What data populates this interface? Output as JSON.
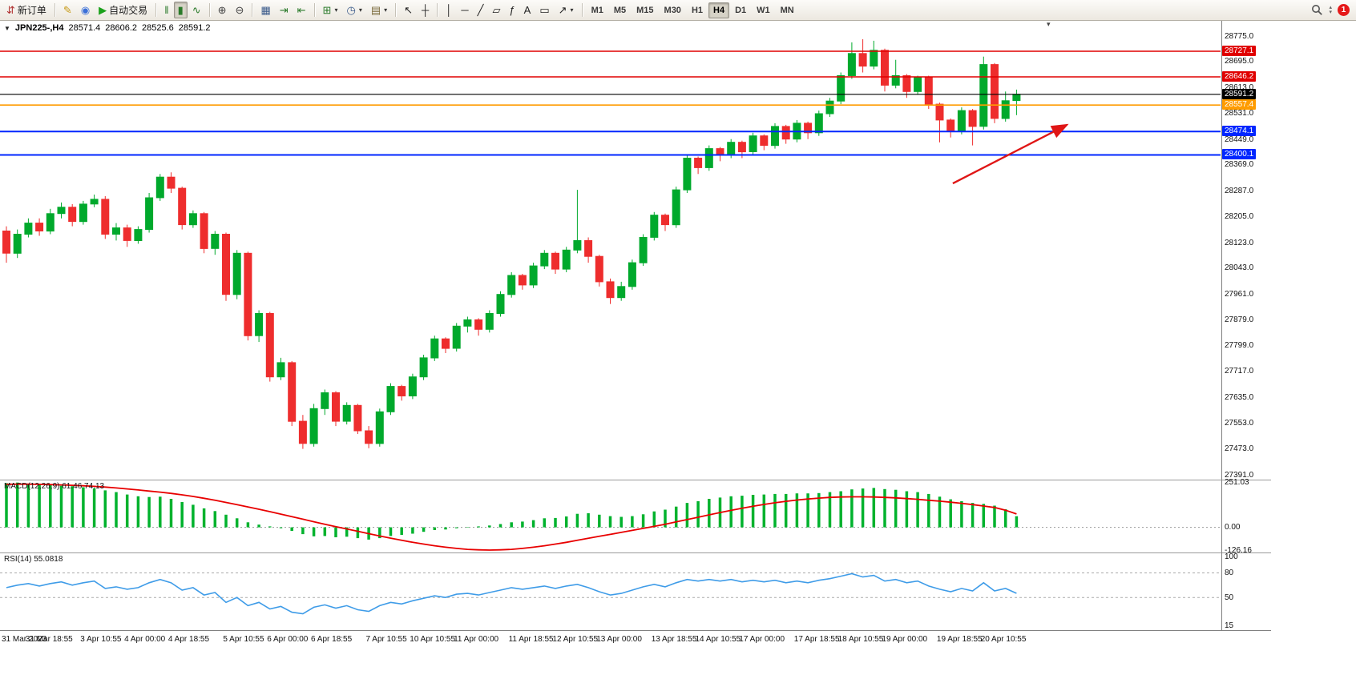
{
  "colors": {
    "candle_up": "#00a92c",
    "candle_down": "#ee2d2d",
    "macd_hist": "#00b22d",
    "macd_signal": "#e80000",
    "rsi_line": "#3f9ce8",
    "level_red": "#e00000",
    "level_orange": "#ff9c00",
    "level_blue": "#0026ff",
    "current_price": "#000000",
    "arrow": "#e01616"
  },
  "toolbar": {
    "notification_count": "1",
    "timeframes": {
      "items": [
        "M1",
        "M5",
        "M15",
        "M30",
        "H1",
        "H4",
        "D1",
        "W1",
        "MN"
      ],
      "active": "H4"
    },
    "groups": [
      {
        "name": "trade",
        "items": [
          {
            "name": "new-order-button",
            "icon": "new-order-icon",
            "glyph": "⇵",
            "color": "#b03030",
            "label": "新订单"
          }
        ]
      },
      {
        "name": "apps",
        "items": [
          {
            "name": "metaeditor-button",
            "icon": "metaeditor-icon",
            "glyph": "✎",
            "color": "#c79a16"
          },
          {
            "name": "market-watch-button",
            "icon": "market-watch-icon",
            "glyph": "◉",
            "color": "#3a6fd8"
          },
          {
            "name": "autotrading-button",
            "icon": "autotrading-play-icon",
            "glyph": "▶",
            "color": "#1ba11b",
            "label": "自动交易"
          }
        ]
      },
      {
        "name": "chart-type",
        "items": [
          {
            "name": "bar-chart-button",
            "icon": "bar-chart-icon",
            "glyph": "‖",
            "color": "#2a7a2a"
          },
          {
            "name": "candle-chart-button",
            "icon": "candlestick-chart-icon",
            "glyph": "▮",
            "color": "#2a7a2a",
            "active": true
          },
          {
            "name": "line-chart-button",
            "icon": "line-chart-icon",
            "glyph": "∿",
            "color": "#2a7a2a"
          }
        ]
      },
      {
        "name": "zoom",
        "items": [
          {
            "name": "zoom-in-button",
            "icon": "zoom-in-icon",
            "glyph": "⊕",
            "color": "#444"
          },
          {
            "name": "zoom-out-button",
            "icon": "zoom-out-icon",
            "glyph": "⊖",
            "color": "#444"
          }
        ]
      },
      {
        "name": "windows",
        "items": [
          {
            "name": "tile-windows-button",
            "icon": "tile-windows-icon",
            "glyph": "▦",
            "color": "#3a5a8a"
          },
          {
            "name": "auto-scroll-button",
            "icon": "auto-scroll-icon",
            "glyph": "⇥",
            "color": "#2a7a2a"
          },
          {
            "name": "chart-shift-button",
            "icon": "chart-shift-icon",
            "glyph": "⇤",
            "color": "#2a7a2a"
          }
        ]
      },
      {
        "name": "dropdowns",
        "items": [
          {
            "name": "indicators-button",
            "icon": "indicators-plus-icon",
            "glyph": "⊞",
            "color": "#2a7a2a",
            "caret": true
          },
          {
            "name": "periods-button",
            "icon": "clock-icon",
            "glyph": "◷",
            "color": "#3a5a8a",
            "caret": true
          },
          {
            "name": "templates-button",
            "icon": "template-icon",
            "glyph": "▤",
            "color": "#7a6a3a",
            "caret": true
          }
        ]
      },
      {
        "name": "cursor-tools",
        "items": [
          {
            "name": "cursor-button",
            "icon": "cursor-arrow-icon",
            "glyph": "↖",
            "color": "#222"
          },
          {
            "name": "crosshair-button",
            "icon": "crosshair-icon",
            "glyph": "┼",
            "color": "#222"
          }
        ]
      },
      {
        "name": "draw-tools",
        "items": [
          {
            "name": "vertical-line-button",
            "icon": "vertical-line-icon",
            "glyph": "│",
            "color": "#222"
          },
          {
            "name": "horizontal-line-button",
            "icon": "horizontal-line-icon",
            "glyph": "─",
            "color": "#222"
          },
          {
            "name": "trendline-button",
            "icon": "trendline-icon",
            "glyph": "╱",
            "color": "#222"
          },
          {
            "name": "channel-button",
            "icon": "channel-icon",
            "glyph": "▱",
            "color": "#222"
          },
          {
            "name": "fibonacci-button",
            "icon": "fibonacci-icon",
            "glyph": "ƒ",
            "color": "#222"
          },
          {
            "name": "text-button",
            "icon": "text-icon",
            "glyph": "A",
            "color": "#222"
          },
          {
            "name": "label-button",
            "icon": "label-icon",
            "glyph": "▭",
            "color": "#222"
          },
          {
            "name": "arrows-button",
            "icon": "arrow-objects-icon",
            "glyph": "↗",
            "color": "#222",
            "caret": true
          }
        ]
      }
    ]
  },
  "chart_header": {
    "collapse_glyph": "▼",
    "symbol_period": "JPN225-,H4",
    "open": "28571.4",
    "high": "28606.2",
    "low": "28525.6",
    "close": "28591.2"
  },
  "indicators": {
    "macd_label": "MACD(12,26,9) 61.46 74.13",
    "rsi_label": "RSI(14) 55.0818"
  },
  "chart_data": {
    "type": "candlestick",
    "symbol": "JPN225-",
    "timeframe": "H4",
    "price_range": {
      "min": 27376,
      "max": 28823
    },
    "y_ticks": [
      28775.0,
      28695.0,
      28613.0,
      28531.0,
      28449.0,
      28369.0,
      28287.0,
      28205.0,
      28123.0,
      28043.0,
      27961.0,
      27879.0,
      27799.0,
      27717.0,
      27635.0,
      27553.0,
      27473.0,
      27391.0
    ],
    "hlines": [
      {
        "value": 28727.1,
        "label": "28727.1",
        "color": "#e00000",
        "width": 1.4
      },
      {
        "value": 28646.2,
        "label": "28646.2",
        "color": "#e00000",
        "width": 1.4
      },
      {
        "value": 28591.2,
        "label": "28591.2",
        "color": "#000000",
        "width": 1.2
      },
      {
        "value": 28557.4,
        "label": "28557.4",
        "color": "#ff9c00",
        "width": 1.6
      },
      {
        "value": 28474.1,
        "label": "28474.1",
        "color": "#0026ff",
        "width": 2
      },
      {
        "value": 28400.1,
        "label": "28400.1",
        "color": "#0026ff",
        "width": 2
      }
    ],
    "arrow": {
      "from_i": 86.2,
      "from_price": 28310,
      "to_i": 96.6,
      "to_price": 28495,
      "color": "#e01616"
    },
    "candles": [
      [
        28160,
        28175,
        28060,
        28090
      ],
      [
        28090,
        28165,
        28075,
        28150
      ],
      [
        28150,
        28200,
        28140,
        28185
      ],
      [
        28185,
        28200,
        28145,
        28160
      ],
      [
        28160,
        28230,
        28150,
        28215
      ],
      [
        28215,
        28250,
        28200,
        28235
      ],
      [
        28235,
        28245,
        28175,
        28190
      ],
      [
        28190,
        28255,
        28180,
        28245
      ],
      [
        28245,
        28275,
        28235,
        28260
      ],
      [
        28260,
        28270,
        28135,
        28150
      ],
      [
        28150,
        28185,
        28130,
        28170
      ],
      [
        28170,
        28180,
        28110,
        28130
      ],
      [
        28130,
        28175,
        28120,
        28165
      ],
      [
        28165,
        28280,
        28155,
        28265
      ],
      [
        28265,
        28340,
        28255,
        28330
      ],
      [
        28330,
        28345,
        28280,
        28295
      ],
      [
        28295,
        28300,
        28165,
        28180
      ],
      [
        28180,
        28225,
        28170,
        28215
      ],
      [
        28215,
        28220,
        28090,
        28105
      ],
      [
        28105,
        28160,
        28085,
        28150
      ],
      [
        28150,
        28155,
        27940,
        27960
      ],
      [
        27960,
        28100,
        27945,
        28090
      ],
      [
        28090,
        28095,
        27815,
        27830
      ],
      [
        27830,
        27910,
        27810,
        27900
      ],
      [
        27900,
        27905,
        27685,
        27700
      ],
      [
        27700,
        27760,
        27690,
        27745
      ],
      [
        27745,
        27750,
        27545,
        27560
      ],
      [
        27560,
        27580,
        27473,
        27490
      ],
      [
        27490,
        27615,
        27480,
        27600
      ],
      [
        27600,
        27660,
        27580,
        27650
      ],
      [
        27650,
        27655,
        27545,
        27560
      ],
      [
        27560,
        27620,
        27550,
        27610
      ],
      [
        27610,
        27615,
        27520,
        27530
      ],
      [
        27530,
        27545,
        27475,
        27490
      ],
      [
        27490,
        27600,
        27480,
        27590
      ],
      [
        27590,
        27680,
        27580,
        27670
      ],
      [
        27670,
        27675,
        27625,
        27640
      ],
      [
        27640,
        27710,
        27630,
        27700
      ],
      [
        27700,
        27770,
        27690,
        27760
      ],
      [
        27760,
        27830,
        27750,
        27820
      ],
      [
        27820,
        27825,
        27775,
        27790
      ],
      [
        27790,
        27870,
        27780,
        27860
      ],
      [
        27860,
        27890,
        27840,
        27880
      ],
      [
        27880,
        27885,
        27830,
        27850
      ],
      [
        27850,
        27910,
        27840,
        27900
      ],
      [
        27900,
        27970,
        27890,
        27960
      ],
      [
        27960,
        28030,
        27950,
        28020
      ],
      [
        28020,
        28025,
        27975,
        27990
      ],
      [
        27990,
        28060,
        27980,
        28050
      ],
      [
        28050,
        28100,
        28040,
        28090
      ],
      [
        28090,
        28095,
        28025,
        28040
      ],
      [
        28040,
        28110,
        28030,
        28100
      ],
      [
        28100,
        28290,
        28090,
        28130
      ],
      [
        28130,
        28140,
        28060,
        28080
      ],
      [
        28080,
        28085,
        27985,
        28000
      ],
      [
        28000,
        28010,
        27930,
        27950
      ],
      [
        27950,
        28000,
        27940,
        27985
      ],
      [
        27985,
        28070,
        27975,
        28060
      ],
      [
        28060,
        28150,
        28050,
        28140
      ],
      [
        28140,
        28220,
        28130,
        28210
      ],
      [
        28210,
        28215,
        28160,
        28180
      ],
      [
        28180,
        28300,
        28170,
        28290
      ],
      [
        28290,
        28400,
        28280,
        28390
      ],
      [
        28390,
        28395,
        28340,
        28360
      ],
      [
        28360,
        28430,
        28350,
        28420
      ],
      [
        28420,
        28425,
        28380,
        28400
      ],
      [
        28400,
        28450,
        28390,
        28440
      ],
      [
        28440,
        28445,
        28390,
        28410
      ],
      [
        28410,
        28470,
        28400,
        28460
      ],
      [
        28460,
        28465,
        28415,
        28430
      ],
      [
        28430,
        28500,
        28420,
        28490
      ],
      [
        28490,
        28495,
        28435,
        28450
      ],
      [
        28450,
        28510,
        28440,
        28500
      ],
      [
        28500,
        28505,
        28450,
        28470
      ],
      [
        28470,
        28540,
        28460,
        28530
      ],
      [
        28530,
        28580,
        28520,
        28570
      ],
      [
        28570,
        28660,
        28560,
        28650
      ],
      [
        28650,
        28755,
        28640,
        28720
      ],
      [
        28720,
        28765,
        28660,
        28680
      ],
      [
        28680,
        28760,
        28670,
        28730
      ],
      [
        28730,
        28735,
        28600,
        28620
      ],
      [
        28620,
        28700,
        28610,
        28650
      ],
      [
        28650,
        28655,
        28580,
        28600
      ],
      [
        28600,
        28650,
        28590,
        28645
      ],
      [
        28645,
        28650,
        28545,
        28560
      ],
      [
        28560,
        28565,
        28440,
        28510
      ],
      [
        28510,
        28515,
        28455,
        28475
      ],
      [
        28475,
        28550,
        28465,
        28540
      ],
      [
        28540,
        28545,
        28430,
        28490
      ],
      [
        28490,
        28710,
        28480,
        28685
      ],
      [
        28685,
        28690,
        28500,
        28515
      ],
      [
        28515,
        28600,
        28505,
        28571
      ],
      [
        28571.4,
        28606.2,
        28525.6,
        28591.2
      ]
    ],
    "macd": {
      "params": "12,26,9",
      "value": 61.46,
      "signal_value": 74.13,
      "range": {
        "min": -126.16,
        "max": 251.03
      },
      "axis": [
        {
          "text": "251.03",
          "value": 251.03
        },
        {
          "text": "0.00",
          "value": 0
        },
        {
          "text": "-126.16",
          "value": -126.16
        }
      ],
      "histogram": [
        245,
        248,
        242,
        238,
        235,
        230,
        228,
        222,
        215,
        205,
        195,
        182,
        172,
        168,
        170,
        158,
        140,
        125,
        105,
        90,
        70,
        50,
        28,
        15,
        5,
        -5,
        -20,
        -38,
        -50,
        -48,
        -55,
        -52,
        -60,
        -68,
        -60,
        -48,
        -42,
        -35,
        -25,
        -15,
        -12,
        -5,
        2,
        5,
        10,
        18,
        28,
        32,
        40,
        50,
        52,
        60,
        75,
        78,
        70,
        62,
        58,
        62,
        72,
        88,
        98,
        115,
        135,
        145,
        158,
        165,
        172,
        175,
        180,
        182,
        185,
        185,
        188,
        188,
        190,
        195,
        200,
        210,
        215,
        218,
        212,
        208,
        200,
        195,
        185,
        170,
        155,
        145,
        135,
        130,
        120,
        100,
        61.46
      ],
      "signal": [
        238,
        239,
        239,
        238,
        237,
        235,
        233,
        230,
        227,
        223,
        218,
        213,
        207,
        201,
        195,
        188,
        180,
        171,
        161,
        150,
        138,
        126,
        113,
        100,
        87,
        73,
        59,
        45,
        31,
        17,
        4,
        -9,
        -22,
        -35,
        -48,
        -60,
        -72,
        -83,
        -93,
        -102,
        -110,
        -117,
        -122,
        -125,
        -126.16,
        -125,
        -122,
        -117,
        -110,
        -102,
        -93,
        -83,
        -72,
        -61,
        -50,
        -39,
        -28,
        -17,
        -6,
        5,
        17,
        30,
        43,
        56,
        69,
        82,
        94,
        106,
        117,
        127,
        136,
        144,
        151,
        157,
        162,
        166,
        168,
        169,
        169,
        168,
        166,
        163,
        159,
        155,
        150,
        145,
        139,
        133,
        126,
        118,
        110,
        95,
        74.13
      ]
    },
    "rsi": {
      "params": "14",
      "value": 55.0818,
      "range": {
        "min": 13,
        "max": 102
      },
      "levels": [
        80,
        50
      ],
      "axis": [
        {
          "text": "100",
          "value": 100
        },
        {
          "text": "80",
          "value": 80
        },
        {
          "text": "50",
          "value": 50
        },
        {
          "text": "15",
          "value": 15
        }
      ],
      "values": [
        62,
        65,
        67,
        64,
        67,
        69,
        65,
        68,
        70,
        61,
        63,
        60,
        62,
        68,
        72,
        68,
        59,
        62,
        53,
        56,
        44,
        50,
        40,
        44,
        36,
        39,
        32,
        30,
        38,
        41,
        37,
        40,
        35,
        33,
        40,
        44,
        42,
        46,
        49,
        52,
        50,
        54,
        55,
        53,
        56,
        59,
        62,
        60,
        62,
        64,
        61,
        64,
        66,
        62,
        57,
        53,
        55,
        59,
        63,
        66,
        63,
        68,
        72,
        70,
        72,
        70,
        72,
        69,
        71,
        69,
        71,
        68,
        70,
        68,
        71,
        73,
        76,
        79,
        75,
        77,
        70,
        72,
        68,
        70,
        64,
        60,
        57,
        61,
        58,
        68,
        58,
        61,
        55.08
      ]
    },
    "x_labels": [
      {
        "text": "31 Mar 2023",
        "i": 0
      },
      {
        "text": "31 Mar 18:55",
        "i": 4
      },
      {
        "text": "3 Apr 10:55",
        "i": 9
      },
      {
        "text": "4 Apr 00:00",
        "i": 13
      },
      {
        "text": "4 Apr 18:55",
        "i": 17
      },
      {
        "text": "5 Apr 10:55",
        "i": 22
      },
      {
        "text": "6 Apr 00:00",
        "i": 26
      },
      {
        "text": "6 Apr 18:55",
        "i": 30
      },
      {
        "text": "7 Apr 10:55",
        "i": 35
      },
      {
        "text": "10 Apr 10:55",
        "i": 39
      },
      {
        "text": "11 Apr 00:00",
        "i": 43
      },
      {
        "text": "11 Apr 18:55",
        "i": 48
      },
      {
        "text": "12 Apr 10:55",
        "i": 52
      },
      {
        "text": "13 Apr 00:00",
        "i": 56
      },
      {
        "text": "13 Apr 18:55",
        "i": 61
      },
      {
        "text": "14 Apr 10:55",
        "i": 65
      },
      {
        "text": "17 Apr 00:00",
        "i": 69
      },
      {
        "text": "17 Apr 18:55",
        "i": 74
      },
      {
        "text": "18 Apr 10:55",
        "i": 78
      },
      {
        "text": "19 Apr 00:00",
        "i": 82
      },
      {
        "text": "19 Apr 18:55",
        "i": 87
      },
      {
        "text": "20 Apr 10:55",
        "i": 91
      }
    ]
  }
}
